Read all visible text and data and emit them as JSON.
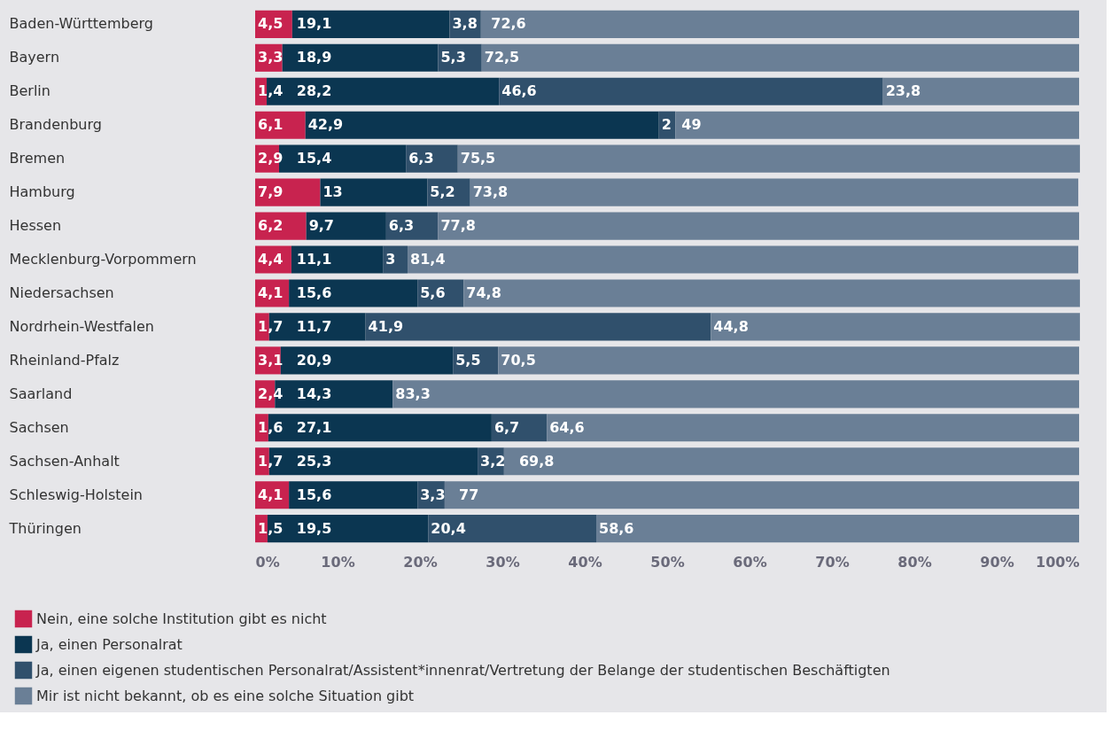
{
  "chart_data": {
    "type": "bar",
    "orientation": "horizontal",
    "stacked": true,
    "grid": false,
    "legend": "bottom",
    "categories": [
      "Baden-Württemberg",
      "Bayern",
      "Berlin",
      "Brandenburg",
      "Bremen",
      "Hamburg",
      "Hessen",
      "Mecklenburg-Vorpommern",
      "Niedersachsen",
      "Nordrhein-Westfalen",
      "Rheinland-Pfalz",
      "Saarland",
      "Sachsen",
      "Sachsen-Anhalt",
      "Schleswig-Holstein",
      "Thüringen"
    ],
    "series": [
      {
        "name": "Nein, eine solche Institution gibt es nicht",
        "color": "#c8234f",
        "values": [
          4.5,
          3.3,
          1.4,
          6.1,
          2.9,
          7.9,
          6.2,
          4.4,
          4.1,
          1.7,
          3.1,
          2.4,
          1.6,
          1.7,
          4.1,
          1.5
        ],
        "value_labels": [
          "4,5",
          "3,3",
          "1,4",
          "6,1",
          "2,9",
          "7,9",
          "6,2",
          "4,4",
          "4,1",
          "1,7",
          "3,1",
          "2,4",
          "1,6",
          "1,7",
          "4,1",
          "1,5"
        ]
      },
      {
        "name": "Ja, einen Personalrat",
        "color": "#0b3651",
        "values": [
          19.1,
          18.9,
          28.2,
          42.9,
          15.4,
          13,
          9.7,
          11.1,
          15.6,
          11.7,
          20.9,
          14.3,
          27.1,
          25.3,
          15.6,
          19.5
        ],
        "value_labels": [
          "19,1",
          "18,9",
          "28,2",
          "42,9",
          "15,4",
          "13",
          "9,7",
          "11,1",
          "15,6",
          "11,7",
          "20,9",
          "14,3",
          "27,1",
          "25,3",
          "15,6",
          "19,5"
        ]
      },
      {
        "name": "Ja, einen eigenen studentischen Personalrat/Assistent*innenrat/Vertretung der Belange der studentischen Beschäftigten",
        "color": "#30506c",
        "values": [
          3.8,
          5.3,
          46.6,
          2,
          6.3,
          5.2,
          6.3,
          3,
          5.6,
          41.9,
          5.5,
          0,
          6.7,
          3.2,
          3.3,
          20.4
        ],
        "value_labels": [
          "3,8",
          "5,3",
          "46,6",
          "2",
          "6,3",
          "5,2",
          "6,3",
          "3",
          "5,6",
          "41,9",
          "5,5",
          null,
          "6,7",
          "3,2",
          "3,3",
          "20,4"
        ]
      },
      {
        "name": "Mir ist nicht bekannt, ob es eine solche Situation gibt",
        "color": "#6a7f96",
        "values": [
          72.6,
          72.5,
          23.8,
          49,
          75.5,
          73.8,
          77.8,
          81.4,
          74.8,
          44.8,
          70.5,
          83.3,
          64.6,
          69.8,
          77,
          58.6
        ],
        "value_labels": [
          "72,6",
          "72,5",
          "23,8",
          "49",
          "75,5",
          "73,8",
          "77,8",
          "81,4",
          "74,8",
          "44,8",
          "70,5",
          "83,3",
          "64,6",
          "69,8",
          "77",
          "58,6"
        ]
      }
    ],
    "xlim": [
      0,
      100
    ],
    "xticks": [
      {
        "value": 0,
        "label": "0%"
      },
      {
        "value": 10,
        "label": "10%"
      },
      {
        "value": 20,
        "label": "20%"
      },
      {
        "value": 30,
        "label": "30%"
      },
      {
        "value": 40,
        "label": "40%"
      },
      {
        "value": 50,
        "label": "50%"
      },
      {
        "value": 60,
        "label": "60%"
      },
      {
        "value": 70,
        "label": "70%"
      },
      {
        "value": 80,
        "label": "80%"
      },
      {
        "value": 90,
        "label": "90%"
      },
      {
        "value": 100,
        "label": "100%"
      }
    ]
  }
}
